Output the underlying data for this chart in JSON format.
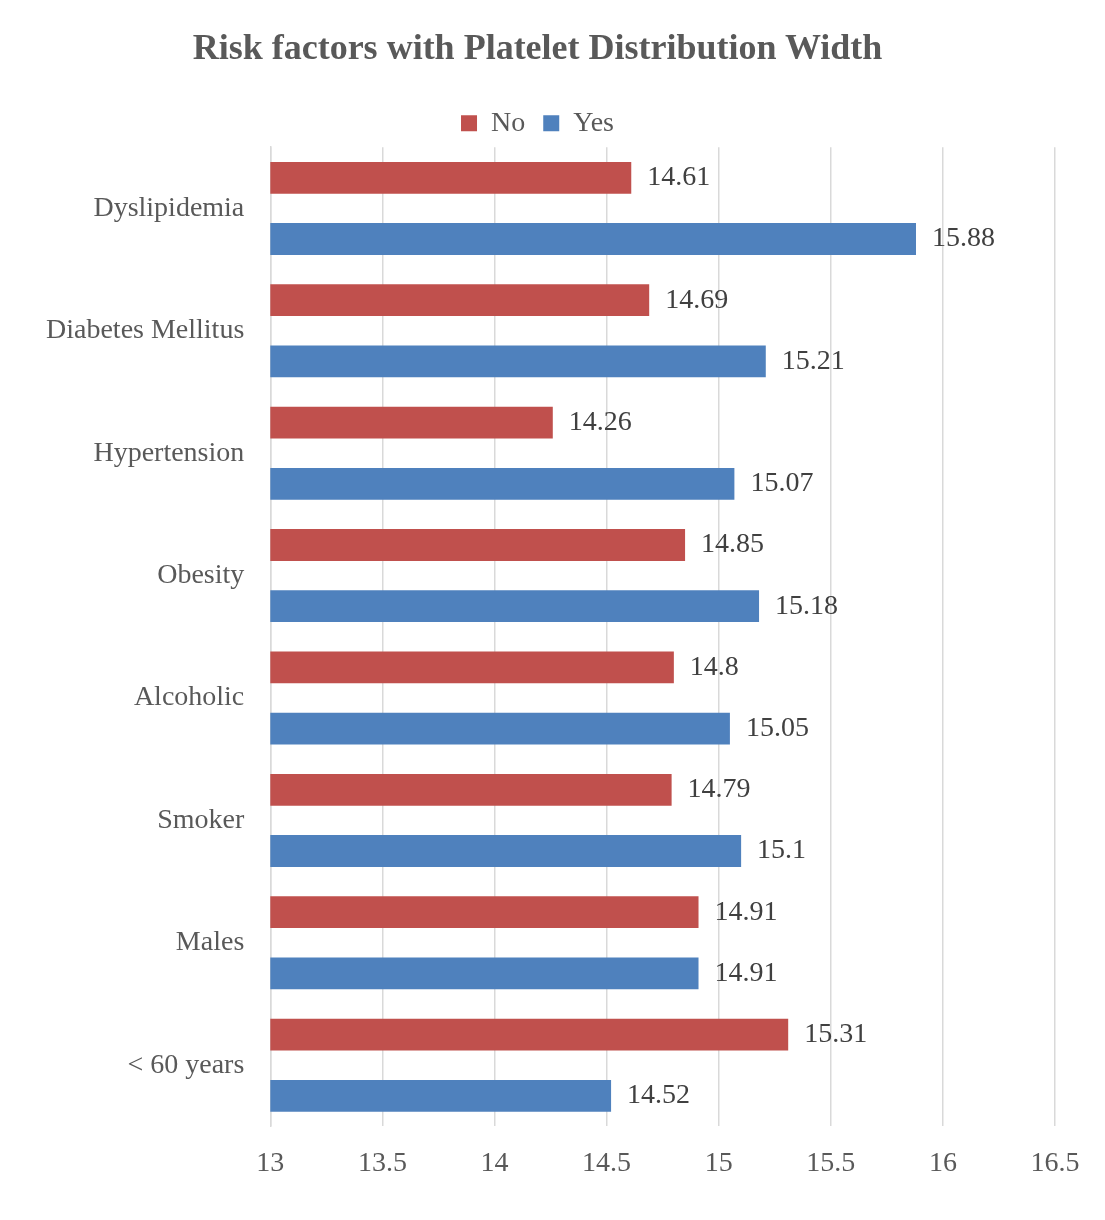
{
  "chart_data": {
    "type": "bar",
    "orientation": "horizontal",
    "title": "Risk factors with Platelet Distribution Width",
    "categories": [
      "Dyslipidemia",
      "Diabetes Mellitus",
      "Hypertension",
      "Obesity",
      "Alcoholic",
      "Smoker",
      "Males",
      "< 60 years"
    ],
    "series": [
      {
        "name": "No",
        "color": "#c0504d",
        "values": [
          14.61,
          14.69,
          14.26,
          14.85,
          14.8,
          14.79,
          14.91,
          15.31
        ]
      },
      {
        "name": "Yes",
        "color": "#4f81bd",
        "values": [
          15.88,
          15.21,
          15.07,
          15.18,
          15.05,
          15.1,
          14.91,
          14.52
        ]
      }
    ],
    "xlim": [
      13,
      16.5
    ],
    "xticks": [
      13,
      13.5,
      14,
      14.5,
      15,
      15.5,
      16,
      16.5
    ],
    "grid": "x",
    "legend": "top",
    "data_labels": true
  }
}
